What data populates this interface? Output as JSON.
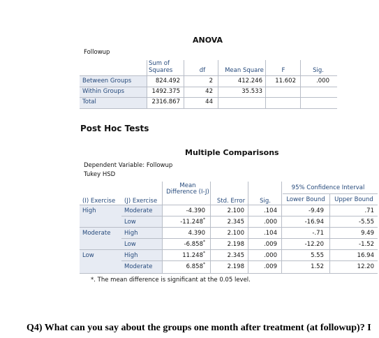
{
  "anova": {
    "title": "ANOVA",
    "label": "Followup",
    "headers": {
      "sum_of_squares": "Sum of Squares",
      "df": "df",
      "mean_square": "Mean Square",
      "f": "F",
      "sig": "Sig."
    },
    "rows": [
      {
        "label": "Between Groups",
        "ss": "824.492",
        "df": "2",
        "ms": "412.246",
        "f": "11.602",
        "sig": ".000"
      },
      {
        "label": "Within Groups",
        "ss": "1492.375",
        "df": "42",
        "ms": "35.533",
        "f": "",
        "sig": ""
      },
      {
        "label": "Total",
        "ss": "2316.867",
        "df": "44",
        "ms": "",
        "f": "",
        "sig": ""
      }
    ]
  },
  "posthoc": {
    "heading": "Post Hoc Tests"
  },
  "mc": {
    "title": "Multiple Comparisons",
    "dependent": "Dependent Variable:   Followup",
    "method": "Tukey HSD",
    "headers": {
      "i": "(I) Exercise",
      "j": "(J) Exercise",
      "md": "Mean Difference (I-J)",
      "se": "Std. Error",
      "sig": "Sig.",
      "ci": "95% Confidence Interval",
      "lb": "Lower Bound",
      "ub": "Upper Bound"
    },
    "rows": [
      {
        "i": "High",
        "j": "Moderate",
        "md": "-4.390",
        "star": "",
        "se": "2.100",
        "sig": ".104",
        "lb": "-9.49",
        "ub": ".71"
      },
      {
        "i": "",
        "j": "Low",
        "md": "-11.248",
        "star": "*",
        "se": "2.345",
        "sig": ".000",
        "lb": "-16.94",
        "ub": "-5.55"
      },
      {
        "i": "Moderate",
        "j": "High",
        "md": "4.390",
        "star": "",
        "se": "2.100",
        "sig": ".104",
        "lb": "-.71",
        "ub": "9.49"
      },
      {
        "i": "",
        "j": "Low",
        "md": "-6.858",
        "star": "*",
        "se": "2.198",
        "sig": ".009",
        "lb": "-12.20",
        "ub": "-1.52"
      },
      {
        "i": "Low",
        "j": "High",
        "md": "11.248",
        "star": "*",
        "se": "2.345",
        "sig": ".000",
        "lb": "5.55",
        "ub": "16.94"
      },
      {
        "i": "",
        "j": "Moderate",
        "md": "6.858",
        "star": "*",
        "se": "2.198",
        "sig": ".009",
        "lb": "1.52",
        "ub": "12.20"
      }
    ],
    "footnote_mark": "*.",
    "footnote": "The mean difference is significant at the 0.05 level."
  },
  "question": {
    "text": "Q4) What can you say about the groups one month after treatment (at followup)? I"
  }
}
